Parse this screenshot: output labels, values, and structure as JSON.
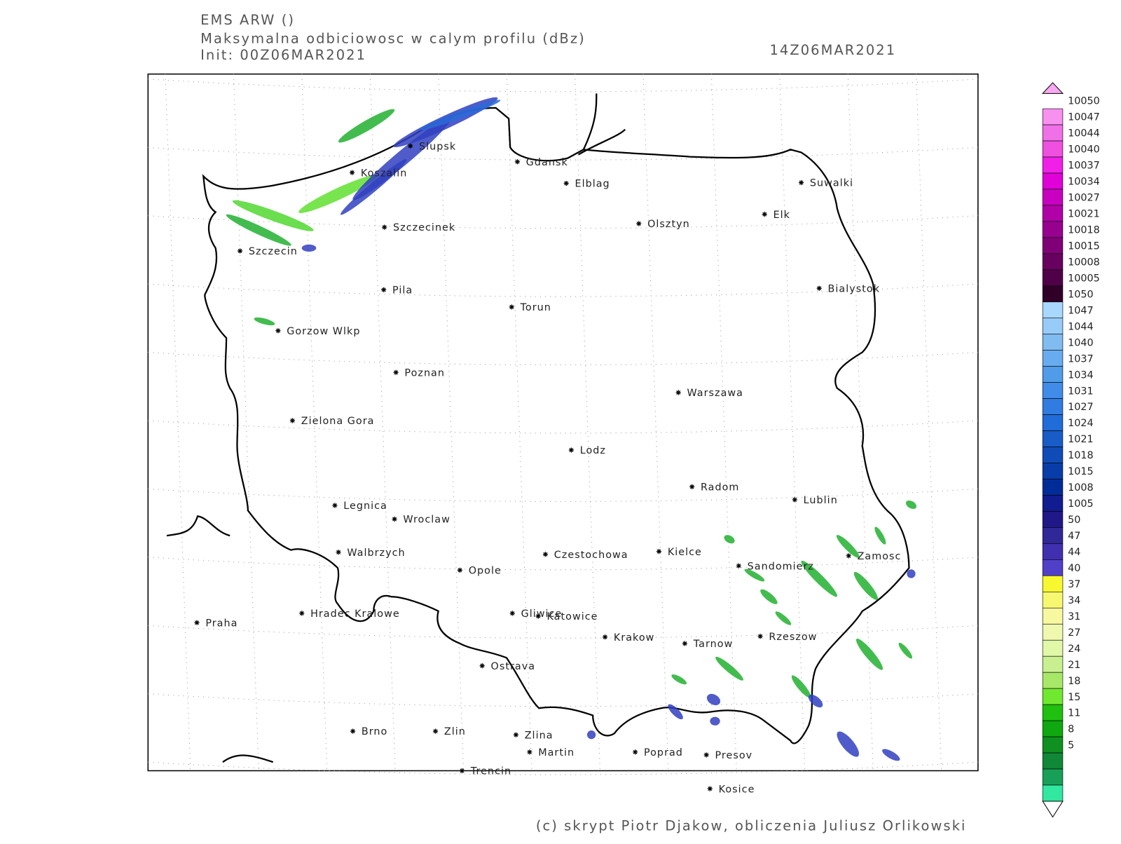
{
  "header": {
    "model": "EMS ARW ()",
    "title": "Maksymalna odbiciowosc w calym profilu (dBz)",
    "init": "Init: 00Z06MAR2021",
    "valid": "14Z06MAR2021"
  },
  "cities": [
    "Slupsk",
    "Koszalin",
    "Gdansk",
    "Elblag",
    "Suwalki",
    "Elk",
    "Olsztyn",
    "Szczecinek",
    "Szczecin",
    "Pila",
    "Bialystok",
    "Torun",
    "Gorzow Wlkp",
    "Poznan",
    "Warszawa",
    "Zielona Gora",
    "Lodz",
    "Radom",
    "Lublin",
    "Legnica",
    "Wroclaw",
    "Walbrzych",
    "Czestochowa",
    "Kielce",
    "Zamosc",
    "Sandomierz",
    "Opole",
    "Praha",
    "Hradec Kralowe",
    "Gliwice",
    "Katowice",
    "Krakow",
    "Rzeszow",
    "Tarnow",
    "Ostrava",
    "Brno",
    "Zlin",
    "Zlina",
    "Martin",
    "Poprad",
    "Presov",
    "Trencin",
    "Kosice"
  ],
  "colorbar": {
    "labels": [
      10050,
      10047,
      10044,
      10040,
      10037,
      10034,
      10027,
      10021,
      10018,
      10015,
      10008,
      10005,
      1050,
      1047,
      1044,
      1040,
      1037,
      1034,
      1031,
      1027,
      1024,
      1021,
      1018,
      1015,
      1008,
      1005,
      50,
      47,
      44,
      40,
      37,
      34,
      31,
      27,
      24,
      21,
      18,
      15,
      11,
      8,
      5
    ],
    "colors": [
      "#f8a8f0",
      "#f890f0",
      "#f070e8",
      "#f050e0",
      "#f020e8",
      "#e000d8",
      "#c800c0",
      "#b000a8",
      "#980090",
      "#800078",
      "#680060",
      "#500048",
      "#300028",
      "#a8d8ff",
      "#98ccf8",
      "#80bcf0",
      "#68acf0",
      "#509ce8",
      "#408ce8",
      "#307ce0",
      "#206cd8",
      "#185cc8",
      "#104cb8",
      "#083ca8",
      "#002c98",
      "#101c90",
      "#201888",
      "#302898",
      "#4030b0",
      "#5040c8",
      "#f8f830",
      "#f8f870",
      "#f8f8a0",
      "#f0f8b0",
      "#e0f8a8",
      "#c8f090",
      "#a8e868",
      "#70e830",
      "#20c010",
      "#10a810",
      "#109020",
      "#108838",
      "#18a058",
      "#30e8a0",
      "#ffffff"
    ]
  },
  "footer": "(c) skrypt Piotr Djakow, obliczenia Juliusz Orlikowski"
}
